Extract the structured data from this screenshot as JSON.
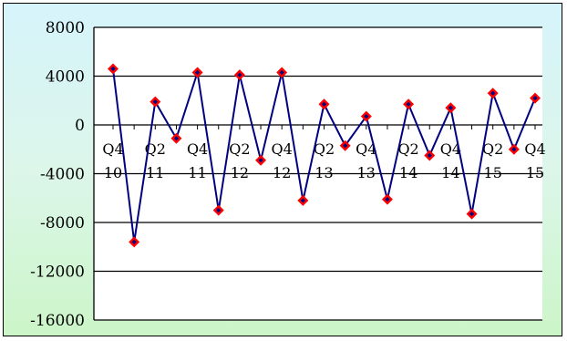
{
  "chart_data": {
    "type": "line",
    "title": "",
    "xlabel": "",
    "ylabel": "",
    "ylim": [
      -16000,
      8000
    ],
    "yticks": [
      8000,
      4000,
      0,
      -4000,
      -8000,
      -12000,
      -16000
    ],
    "ytick_labels": [
      "8000",
      "4000",
      "0",
      "-4000",
      "-8000",
      "-12000",
      "-16000"
    ],
    "grid": "horizontal",
    "category_labels": [
      [
        "Q4",
        "10"
      ],
      [
        "Q2",
        "11"
      ],
      [
        "Q4",
        "11"
      ],
      [
        "Q2",
        "12"
      ],
      [
        "Q4",
        "12"
      ],
      [
        "Q2",
        "13"
      ],
      [
        "Q4",
        "13"
      ],
      [
        "Q2",
        "14"
      ],
      [
        "Q4",
        "14"
      ],
      [
        "Q2",
        "15"
      ],
      [
        "Q4",
        "15"
      ]
    ],
    "x": [
      "Q4 10",
      "Q1 11",
      "Q2 11",
      "Q3 11",
      "Q4 11",
      "Q1 12",
      "Q2 12",
      "Q3 12",
      "Q4 12",
      "Q1 13",
      "Q2 13",
      "Q3 13",
      "Q4 13",
      "Q1 14",
      "Q2 14",
      "Q3 14",
      "Q4 14",
      "Q1 15",
      "Q2 15",
      "Q3 15",
      "Q4 15"
    ],
    "series": [
      {
        "values": [
          4600,
          -9600,
          1900,
          -1100,
          4300,
          -7000,
          4100,
          -2900,
          4300,
          -6200,
          1700,
          -1700,
          700,
          -6100,
          1700,
          -2500,
          1400,
          -7300,
          2600,
          -2000,
          2200
        ],
        "line_color": "#000080",
        "marker_color": "#ff0000",
        "marker": "diamond"
      }
    ]
  }
}
